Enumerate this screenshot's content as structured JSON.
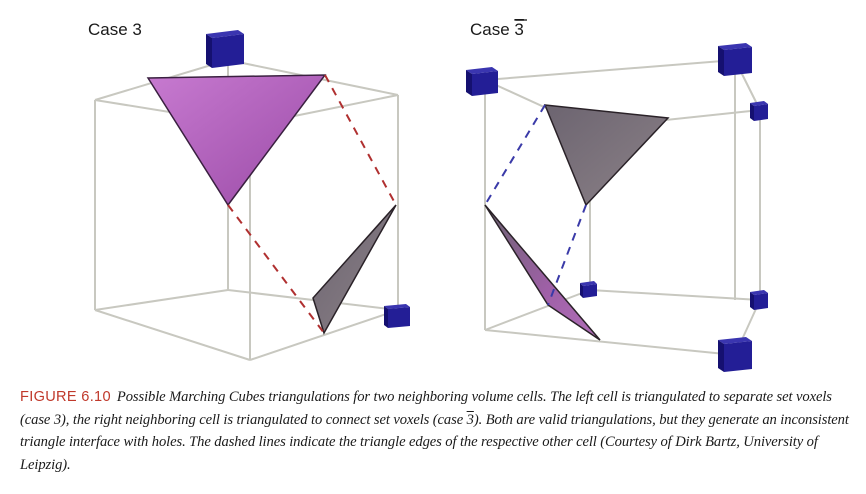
{
  "figure": {
    "left_title": "Case 3",
    "right_title_text": "Case ",
    "right_title_bar": "3"
  },
  "caption": {
    "label": "FIGURE 6.10",
    "text_before": "Possible Marching Cubes triangulations for two neighboring volume cells. The left cell is triangulated to separate set voxels (case 3), the right neighboring cell is triangulated to connect set voxels (case ",
    "text_bar": "3",
    "text_after": "). Both are valid triangulations, but they generate an inconsistent triangle interface with holes. The dashed lines indicate the triangle edges of the respective other cell (Courtesy of Dirk Bartz, University of Leipzig)."
  },
  "colors": {
    "cube_edge": "#c8c8c0",
    "voxel": "#1e1a8c",
    "triangle_pink": "#b868c0",
    "triangle_gray": "#7a7078",
    "dash_red": "#b03030",
    "dash_blue": "#3a3aa8"
  }
}
